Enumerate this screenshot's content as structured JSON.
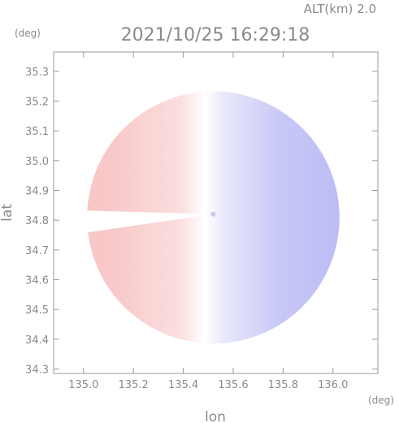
{
  "header": {
    "altitude_text": "ALT(km) 2.0",
    "timestamp": "2021/10/25 16:29:18"
  },
  "chart_data": {
    "type": "heatmap",
    "title": "2021/10/25 16:29:18",
    "subtitle": "ALT(km) 2.0",
    "xlabel": "lon",
    "ylabel": "lat",
    "x_unit": "(deg)",
    "y_unit": "(deg)",
    "xlim": [
      134.88,
      136.18
    ],
    "ylim": [
      34.285,
      35.365
    ],
    "x_ticks": [
      135.0,
      135.2,
      135.4,
      135.6,
      135.8,
      136.0
    ],
    "x_tick_labels": [
      "135.0",
      "135.2",
      "135.4",
      "135.6",
      "135.8",
      "136.0"
    ],
    "y_ticks": [
      34.3,
      34.4,
      34.5,
      34.6,
      34.7,
      34.8,
      34.9,
      35.0,
      35.1,
      35.2,
      35.3
    ],
    "y_tick_labels": [
      "34.3",
      "34.4",
      "34.5",
      "34.6",
      "34.7",
      "34.8",
      "34.9",
      "35.0",
      "35.1",
      "35.2",
      "35.3"
    ],
    "radar_center": {
      "lon": 135.52,
      "lat": 34.82
    },
    "radar_radius_deg": 0.55,
    "colors": {
      "positive": "#f5b8b8",
      "negative": "#a9a9f5",
      "zero": "#ffffff"
    }
  }
}
